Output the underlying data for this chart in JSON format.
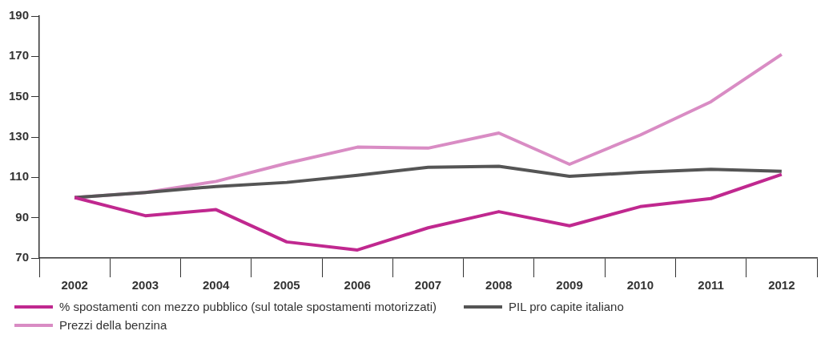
{
  "chart_data": {
    "type": "line",
    "categories": [
      "2002",
      "2003",
      "2004",
      "2005",
      "2006",
      "2007",
      "2008",
      "2009",
      "2010",
      "2011",
      "2012"
    ],
    "series": [
      {
        "name": "% spostamenti con mezzo pubblico (sul totale spostamenti motorizzati)",
        "color": "#c0288f",
        "values": [
          100,
          91,
          94,
          78,
          74,
          85,
          93,
          86,
          95.5,
          99.5,
          111.5
        ]
      },
      {
        "name": "PIL pro capite italiano",
        "color": "#555555",
        "values": [
          100,
          102.5,
          105.5,
          107.5,
          111,
          115,
          115.5,
          110.5,
          112.5,
          114,
          113
        ]
      },
      {
        "name": "Prezzi della benzina",
        "color": "#d98cc4",
        "values": [
          100,
          102.5,
          108,
          117,
          125,
          124.5,
          132,
          116.5,
          131,
          147.5,
          171
        ]
      }
    ],
    "ylim": [
      70,
      190
    ],
    "yticks": [
      70,
      90,
      110,
      130,
      150,
      170,
      190
    ],
    "grid": false,
    "legend": "bottom",
    "marker": "none",
    "line_style": "solid"
  }
}
